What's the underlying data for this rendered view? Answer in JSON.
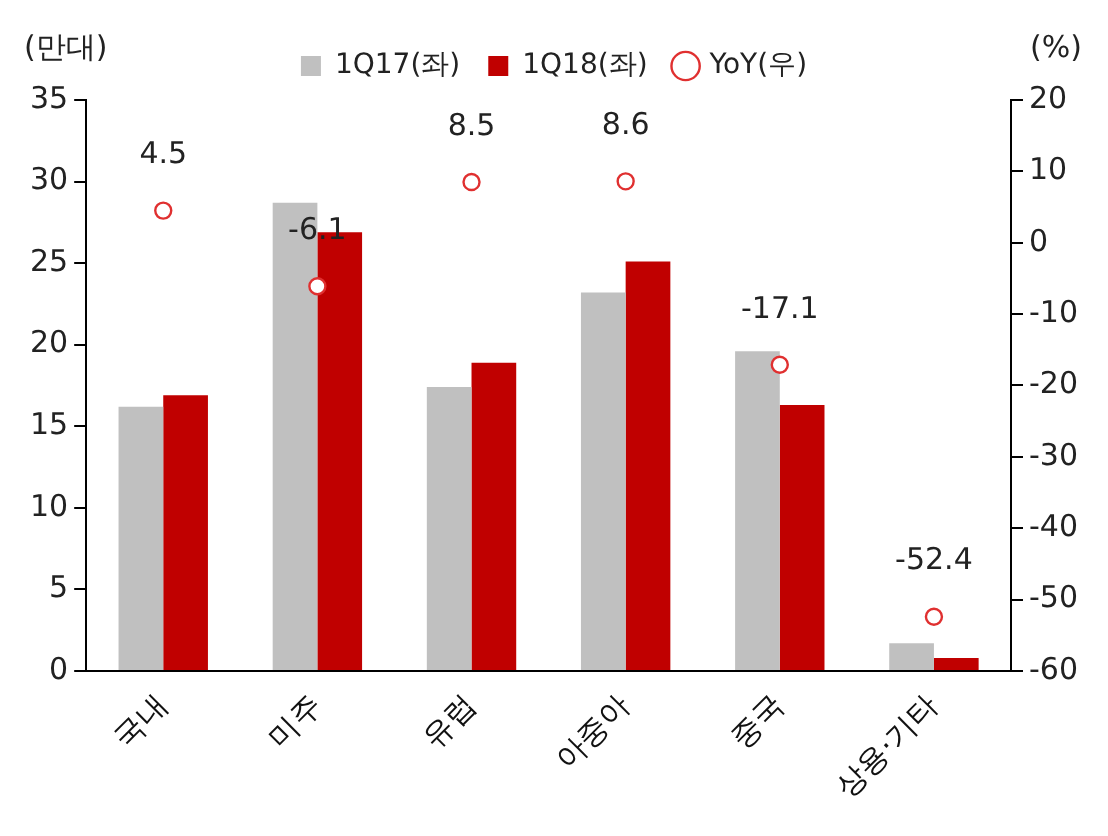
{
  "chart_data": {
    "type": "bar",
    "ylabel": "(만대)",
    "y2label": "(%)",
    "categories": [
      "국내",
      "미주",
      "유럽",
      "아중아",
      "중국",
      "상용·기타"
    ],
    "series": [
      {
        "name": "1Q17(좌)",
        "color": "#c0c0c0",
        "values": [
          16.2,
          28.7,
          17.4,
          23.2,
          19.6,
          1.7
        ]
      },
      {
        "name": "1Q18(좌)",
        "color": "#c00000",
        "values": [
          16.9,
          26.9,
          18.9,
          25.1,
          16.3,
          0.8
        ]
      },
      {
        "name": "YoY(우)",
        "type": "scatter",
        "axis": "y2",
        "color": "#e03030",
        "marker": "circle",
        "values": [
          4.5,
          -6.1,
          8.5,
          8.6,
          -17.1,
          -52.4
        ],
        "value_labels": [
          "4.5",
          "-6.1",
          "8.5",
          "8.6",
          "-17.1",
          "-52.4"
        ]
      }
    ],
    "ylim": [
      0,
      35
    ],
    "yticks": [
      0,
      5,
      10,
      15,
      20,
      25,
      30,
      35
    ],
    "y2lim": [
      -60,
      20
    ],
    "y2ticks": [
      -60,
      -50,
      -40,
      -30,
      -20,
      -10,
      0,
      10,
      20
    ],
    "grid": false,
    "legend": "top"
  }
}
